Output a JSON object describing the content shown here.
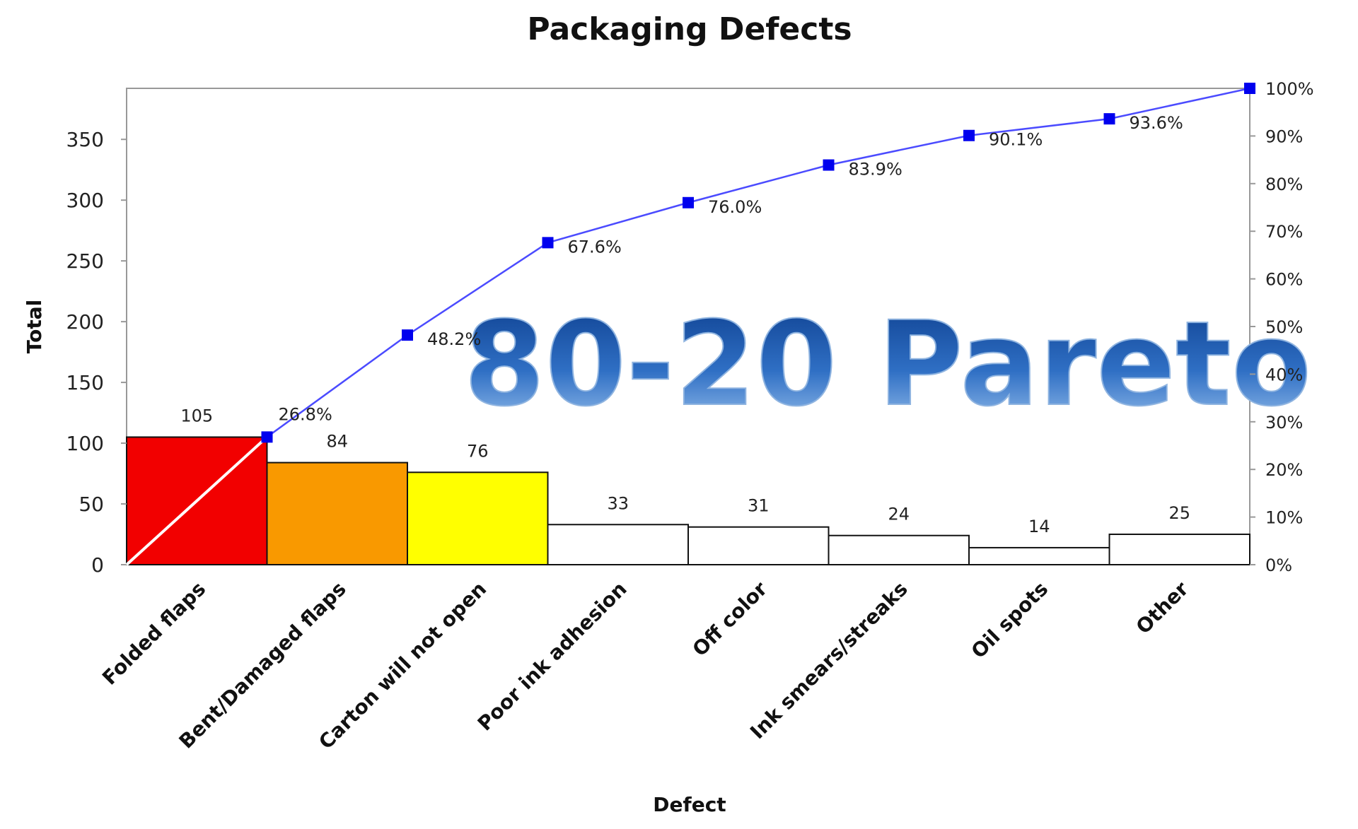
{
  "chart_data": {
    "type": "bar",
    "title": "Packaging Defects",
    "xlabel": "Defect",
    "ylabel": "Total",
    "categories": [
      "Folded flaps",
      "Bent/Damaged flaps",
      "Carton will not open",
      "Poor ink adhesion",
      "Off color",
      "Ink smears/streaks",
      "Oil spots",
      "Other"
    ],
    "values": [
      105,
      84,
      76,
      33,
      31,
      24,
      14,
      25
    ],
    "bar_colors": [
      "#f20000",
      "#f99900",
      "#ffff00",
      "#ffffff",
      "#ffffff",
      "#ffffff",
      "#ffffff",
      "#ffffff"
    ],
    "ylim": [
      0,
      392
    ],
    "yticks": [
      0,
      50,
      100,
      150,
      200,
      250,
      300,
      350
    ],
    "y2lim": [
      0,
      100
    ],
    "y2ticks": [
      "0%",
      "10%",
      "20%",
      "30%",
      "40%",
      "50%",
      "60%",
      "70%",
      "80%",
      "90%",
      "100%"
    ],
    "cumulative_series": {
      "type": "line",
      "values": [
        26.8,
        48.2,
        67.6,
        76.0,
        83.9,
        90.1,
        93.6,
        100
      ],
      "labels": [
        "26.8%",
        "48.2%",
        "67.6%",
        "76.0%",
        "83.9%",
        "90.1%",
        "93.6%",
        ""
      ],
      "line_color": "#4b4bff",
      "marker_color": "#0000ee"
    },
    "grid": false,
    "legend": "none",
    "watermark": "80-20 Pareto",
    "watermark_color": "#1f5fb0"
  }
}
